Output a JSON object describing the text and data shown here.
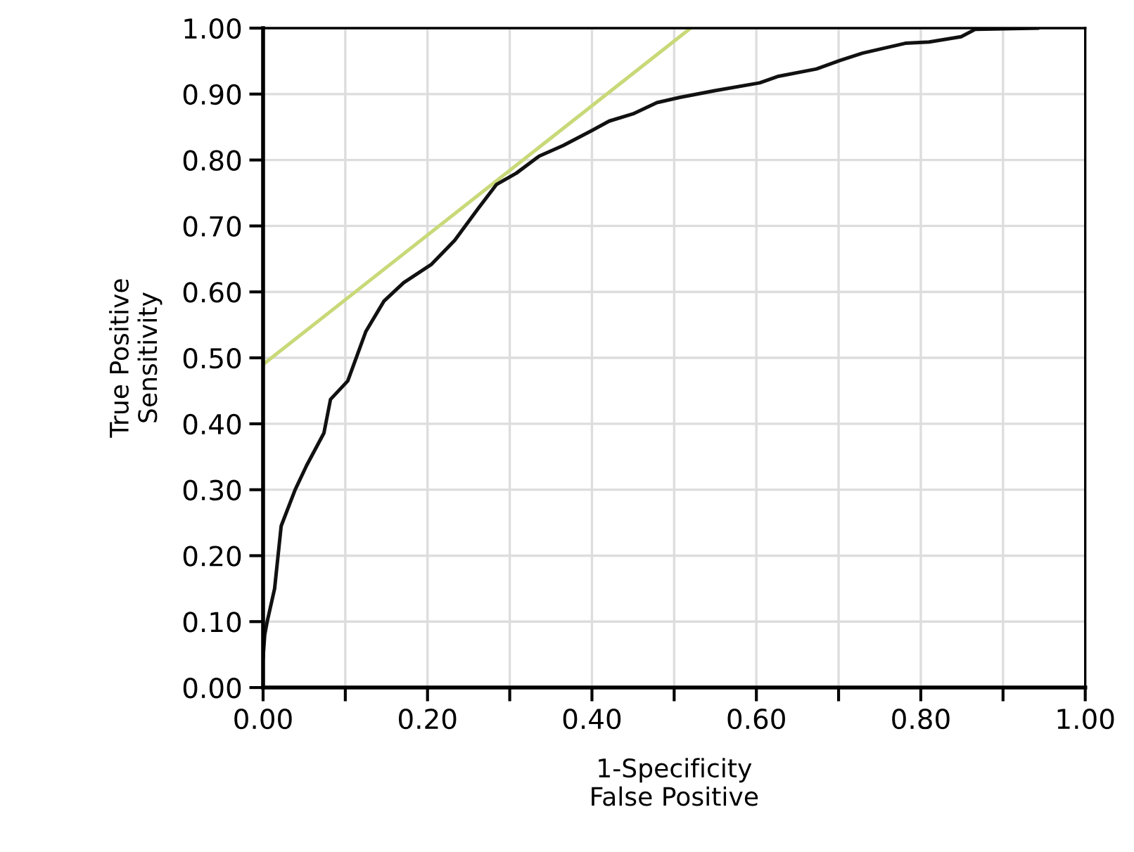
{
  "chart_data": {
    "type": "line",
    "xlabel": "1-Specificity\nFalse Positive",
    "ylabel": "True Positive\nSensitivity",
    "xlim": [
      0,
      1
    ],
    "ylim": [
      0,
      1
    ],
    "xticks": [
      {
        "value": 0,
        "label": "0.00"
      },
      {
        "value": 0.1,
        "label": null
      },
      {
        "value": 0.2,
        "label": "0.20"
      },
      {
        "value": 0.3,
        "label": null
      },
      {
        "value": 0.4,
        "label": "0.40"
      },
      {
        "value": 0.5,
        "label": null
      },
      {
        "value": 0.6,
        "label": "0.60"
      },
      {
        "value": 0.7,
        "label": null
      },
      {
        "value": 0.8,
        "label": "0.80"
      },
      {
        "value": 0.9,
        "label": null
      },
      {
        "value": 1,
        "label": "1.00"
      }
    ],
    "yticks": [
      {
        "value": 0,
        "label": "0.00"
      },
      {
        "value": 0.1,
        "label": "0.10"
      },
      {
        "value": 0.2,
        "label": "0.20"
      },
      {
        "value": 0.3,
        "label": "0.30"
      },
      {
        "value": 0.4,
        "label": "0.40"
      },
      {
        "value": 0.5,
        "label": "0.50"
      },
      {
        "value": 0.6,
        "label": "0.60"
      },
      {
        "value": 0.7,
        "label": "0.70"
      },
      {
        "value": 0.8,
        "label": "0.80"
      },
      {
        "value": 0.9,
        "label": "0.90"
      },
      {
        "value": 1,
        "label": "1.00"
      }
    ],
    "grid": true,
    "marker": "none",
    "line_style": "solid",
    "series": [
      {
        "color": "#c8d978",
        "x": [
          0,
          0.52
        ],
        "values": [
          0.49,
          1.0
        ]
      },
      {
        "color": "#111111",
        "x": [
          0,
          0.002,
          0.005,
          0.014,
          0.022,
          0.039,
          0.053,
          0.074,
          0.082,
          0.103,
          0.125,
          0.147,
          0.171,
          0.205,
          0.233,
          0.262,
          0.284,
          0.308,
          0.336,
          0.365,
          0.399,
          0.421,
          0.45,
          0.479,
          0.507,
          0.553,
          0.604,
          0.627,
          0.673,
          0.702,
          0.729,
          0.781,
          0.81,
          0.849,
          0.866,
          0.942
        ],
        "values": [
          0.045,
          0.08,
          0.1,
          0.15,
          0.245,
          0.3,
          0.337,
          0.386,
          0.437,
          0.465,
          0.54,
          0.586,
          0.614,
          0.642,
          0.678,
          0.727,
          0.763,
          0.78,
          0.806,
          0.822,
          0.844,
          0.859,
          0.87,
          0.887,
          0.895,
          0.906,
          0.917,
          0.927,
          0.938,
          0.951,
          0.962,
          0.977,
          0.979,
          0.987,
          0.998,
          1.0
        ]
      }
    ]
  }
}
